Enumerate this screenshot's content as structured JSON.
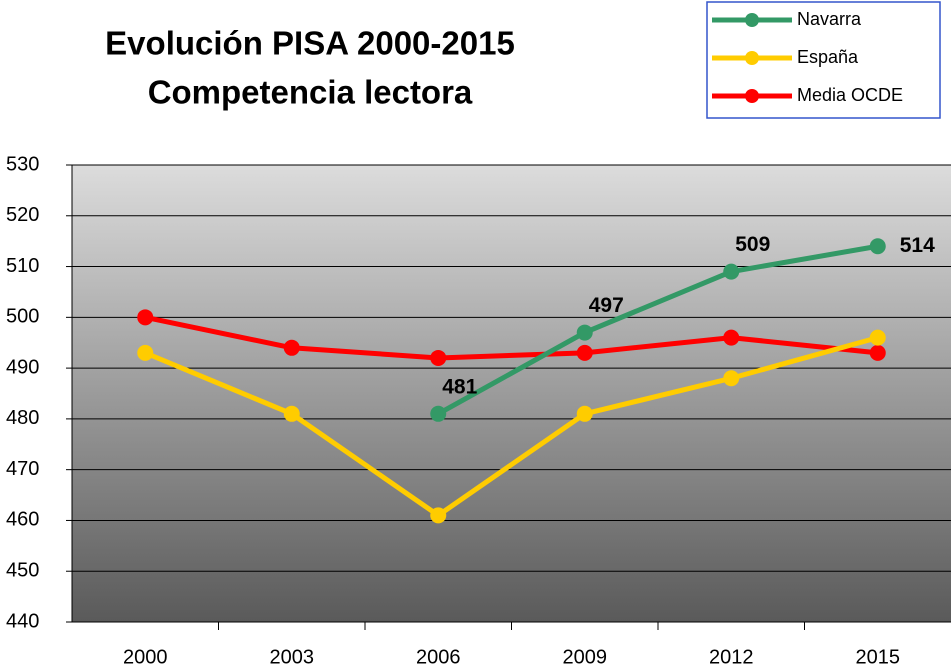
{
  "chart_data": {
    "type": "line",
    "title": "Evolución PISA 2000-2015",
    "subtitle": "Competencia lectora",
    "categories": [
      "2000",
      "2003",
      "2006",
      "2009",
      "2012",
      "2015"
    ],
    "series": [
      {
        "name": "Navarra",
        "color": "#339966",
        "values": [
          null,
          null,
          481,
          497,
          509,
          514
        ],
        "data_labels": true
      },
      {
        "name": "España",
        "color": "#ffcc00",
        "values": [
          493,
          481,
          461,
          481,
          488,
          496
        ]
      },
      {
        "name": "Media OCDE",
        "color": "#ff0000",
        "values": [
          500,
          494,
          492,
          493,
          496,
          493
        ]
      }
    ],
    "ylim": [
      440,
      530
    ],
    "yticks": [
      440,
      450,
      460,
      470,
      480,
      490,
      500,
      510,
      520,
      530
    ],
    "grid": true,
    "legend": "top-right"
  }
}
